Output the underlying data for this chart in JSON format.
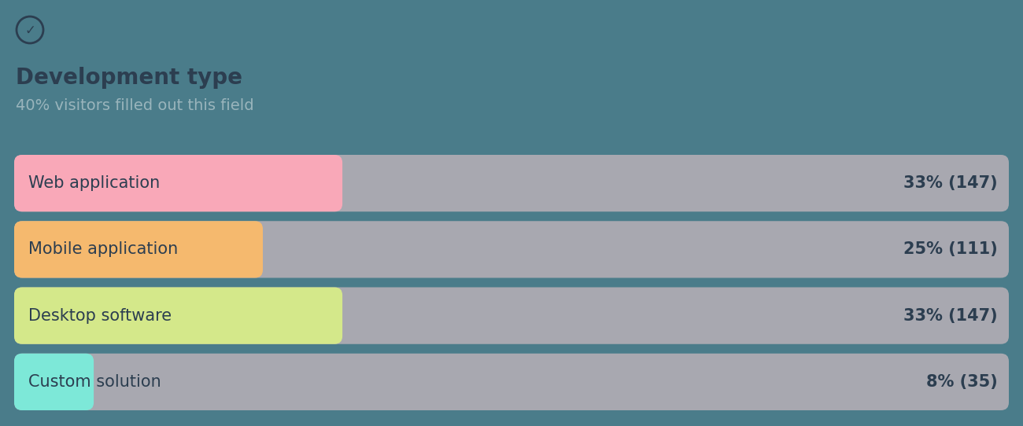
{
  "title": "Development type",
  "subtitle": "40% visitors filled out this field",
  "background_color": "#4a7c8a",
  "bar_bg_color": "#a8a8b0",
  "categories": [
    "Web application",
    "Mobile application",
    "Desktop software",
    "Custom solution"
  ],
  "percentages": [
    33,
    25,
    33,
    8
  ],
  "counts": [
    147,
    111,
    147,
    35
  ],
  "bar_colors": [
    "#f9a8b8",
    "#f5b96e",
    "#d4e88a",
    "#7de8d8"
  ],
  "text_color": "#2c3e50",
  "subtitle_color": "#a8bfc5",
  "icon_color": "#2c3e50",
  "icon_symbol": "✓"
}
